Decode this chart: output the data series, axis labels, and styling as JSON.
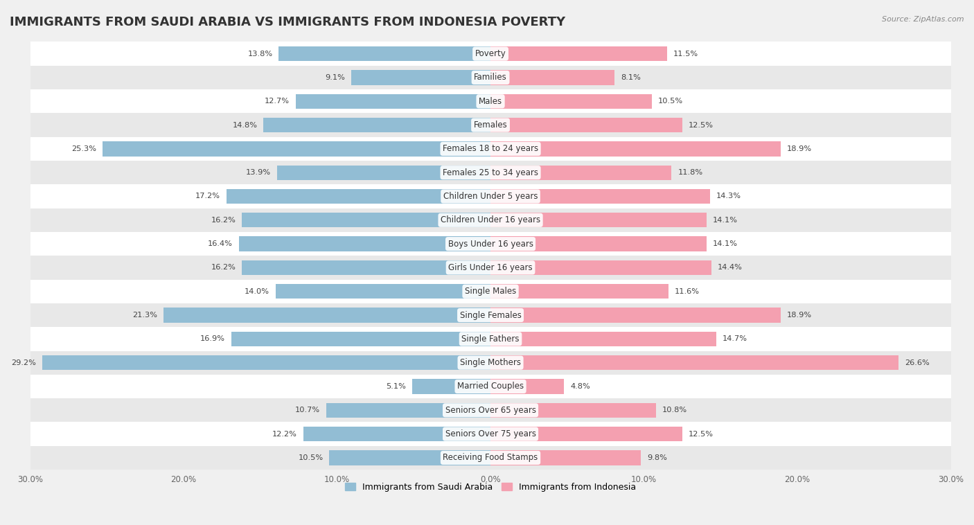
{
  "title": "IMMIGRANTS FROM SAUDI ARABIA VS IMMIGRANTS FROM INDONESIA POVERTY",
  "source": "Source: ZipAtlas.com",
  "categories": [
    "Poverty",
    "Families",
    "Males",
    "Females",
    "Females 18 to 24 years",
    "Females 25 to 34 years",
    "Children Under 5 years",
    "Children Under 16 years",
    "Boys Under 16 years",
    "Girls Under 16 years",
    "Single Males",
    "Single Females",
    "Single Fathers",
    "Single Mothers",
    "Married Couples",
    "Seniors Over 65 years",
    "Seniors Over 75 years",
    "Receiving Food Stamps"
  ],
  "saudi_values": [
    13.8,
    9.1,
    12.7,
    14.8,
    25.3,
    13.9,
    17.2,
    16.2,
    16.4,
    16.2,
    14.0,
    21.3,
    16.9,
    29.2,
    5.1,
    10.7,
    12.2,
    10.5
  ],
  "indonesia_values": [
    11.5,
    8.1,
    10.5,
    12.5,
    18.9,
    11.8,
    14.3,
    14.1,
    14.1,
    14.4,
    11.6,
    18.9,
    14.7,
    26.6,
    4.8,
    10.8,
    12.5,
    9.8
  ],
  "saudi_color": "#92BDD4",
  "indonesia_color": "#F4A0B0",
  "saudi_label": "Immigrants from Saudi Arabia",
  "indonesia_label": "Immigrants from Indonesia",
  "background_color": "#f0f0f0",
  "row_colors": [
    "#ffffff",
    "#e8e8e8"
  ],
  "xlim": 30.0,
  "bar_height": 0.62,
  "title_fontsize": 13,
  "label_fontsize": 8.5,
  "value_fontsize": 8.2
}
